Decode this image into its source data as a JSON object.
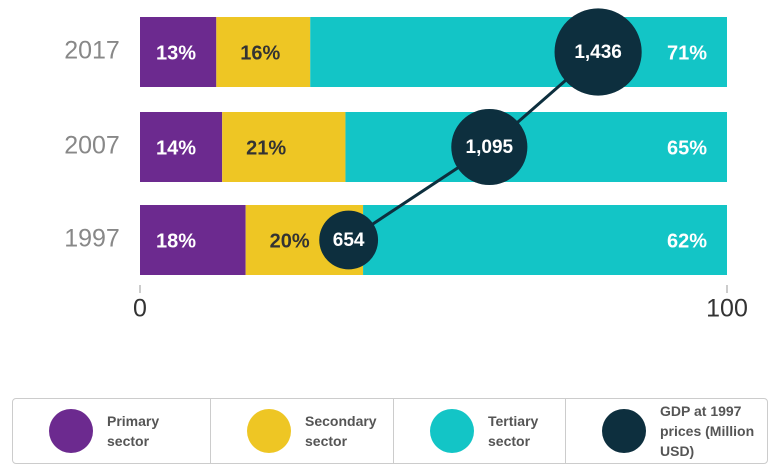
{
  "chart_data": {
    "type": "stacked-bar-bubble",
    "categories": [
      "2017",
      "2007",
      "1997"
    ],
    "xlim": [
      0,
      100
    ],
    "xticks": [
      0,
      100
    ],
    "x2lim": [
      0,
      1840
    ],
    "series": [
      {
        "name": "Primary sector",
        "color": "#6c2a8f",
        "values": [
          13,
          14,
          18
        ],
        "value_labels": [
          "13%",
          "14%",
          "18%"
        ]
      },
      {
        "name": "Secondary sector",
        "color": "#eec624",
        "values": [
          16,
          21,
          20
        ],
        "value_labels": [
          "16%",
          "21%",
          "20%"
        ]
      },
      {
        "name": "Tertiary sector",
        "color": "#13c5c6",
        "values": [
          71,
          65,
          62
        ],
        "value_labels": [
          "71%",
          "65%",
          "62%"
        ]
      },
      {
        "name": "GDP at 1997 prices (Million USD)",
        "color": "#0d2f3e",
        "axis": "x2",
        "values": [
          1436,
          1095,
          654
        ],
        "value_labels": [
          "1,436",
          "1,095",
          "654"
        ]
      }
    ]
  }
}
